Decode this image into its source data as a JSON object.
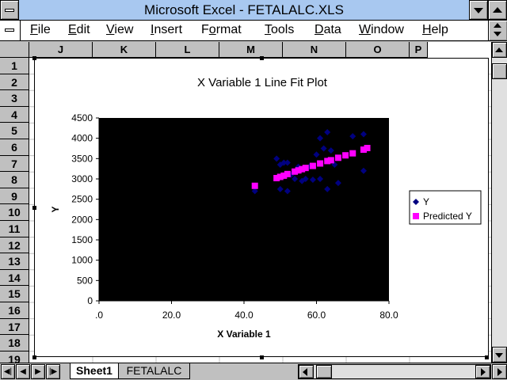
{
  "window": {
    "title": "Microsoft Excel - FETALALC.XLS"
  },
  "menu": {
    "items": [
      {
        "label": "File",
        "mnemonic": "F"
      },
      {
        "label": "Edit",
        "mnemonic": "E"
      },
      {
        "label": "View",
        "mnemonic": "V"
      },
      {
        "label": "Insert",
        "mnemonic": "I"
      },
      {
        "label": "Format",
        "mnemonic": "o"
      },
      {
        "label": "Tools",
        "mnemonic": "T"
      },
      {
        "label": "Data",
        "mnemonic": "D"
      },
      {
        "label": "Window",
        "mnemonic": "W"
      },
      {
        "label": "Help",
        "mnemonic": "H"
      }
    ]
  },
  "columns": [
    "J",
    "K",
    "L",
    "M",
    "N",
    "O",
    "P"
  ],
  "rows": [
    "1",
    "2",
    "3",
    "4",
    "5",
    "6",
    "7",
    "8",
    "9",
    "10",
    "11",
    "12",
    "13",
    "14",
    "15",
    "16",
    "17",
    "18",
    "19"
  ],
  "sheets": {
    "tabs": [
      "Sheet1",
      "FETALALC"
    ],
    "active": "Sheet1"
  },
  "colors": {
    "background": "#000000",
    "series_y": "#000080",
    "series_pred": "#ff00ff",
    "titlebar": "#a8c8f0"
  },
  "chart_data": {
    "type": "scatter",
    "title": "X Variable 1 Line Fit  Plot",
    "xlabel": "X Variable 1",
    "ylabel": "Y",
    "xlim": [
      0,
      80
    ],
    "ylim": [
      0,
      4500
    ],
    "xticks": [
      ".0",
      "20.0",
      "40.0",
      "60.0",
      "80.0"
    ],
    "yticks": [
      "0",
      "500",
      "1000",
      "1500",
      "2000",
      "2500",
      "3000",
      "3500",
      "4000",
      "4500"
    ],
    "legend_position": "right",
    "series": [
      {
        "name": "Y",
        "marker": "diamond",
        "x": [
          43,
          49,
          50,
          50,
          51,
          52,
          52,
          53,
          54,
          55,
          56,
          57,
          58,
          59,
          60,
          61,
          61,
          62,
          63,
          63,
          64,
          65,
          66,
          70,
          73,
          73
        ],
        "y": [
          2700,
          3500,
          2750,
          3350,
          3400,
          2700,
          3400,
          3100,
          3000,
          3300,
          2950,
          3000,
          3300,
          2980,
          3600,
          4000,
          3000,
          3750,
          2750,
          4150,
          3700,
          3350,
          2900,
          4050,
          4100,
          3200
        ]
      },
      {
        "name": "Predicted Y",
        "marker": "square",
        "x": [
          43,
          49,
          50,
          51,
          52,
          54,
          55,
          56,
          57,
          59,
          61,
          63,
          64,
          66,
          68,
          70,
          73,
          74
        ],
        "y": [
          2830,
          3020,
          3050,
          3080,
          3120,
          3180,
          3210,
          3240,
          3270,
          3320,
          3380,
          3440,
          3460,
          3520,
          3580,
          3630,
          3720,
          3760
        ]
      }
    ]
  }
}
